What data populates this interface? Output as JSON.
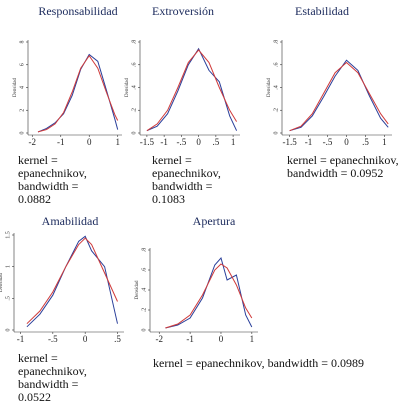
{
  "chart_data": [
    {
      "type": "line",
      "title": "Responsabilidad",
      "y_label": "Densidad",
      "note": "kernel = epanechnikov, bandwidth = 0.0882",
      "x": [
        -1.8,
        -1.5,
        -1.2,
        -0.9,
        -0.6,
        -0.3,
        0,
        0.3,
        0.6,
        0.9,
        1.0
      ],
      "series": [
        {
          "color": "#2a3f9a",
          "values": [
            0.1,
            0.4,
            0.9,
            1.7,
            3.3,
            5.6,
            6.9,
            6.3,
            3.8,
            1.2,
            0.3
          ]
        },
        {
          "color": "#d03a3a",
          "values": [
            0.1,
            0.3,
            0.8,
            1.8,
            3.6,
            5.7,
            6.8,
            5.7,
            3.6,
            1.6,
            1.1
          ]
        }
      ],
      "xlim": [
        -2.15,
        1.15
      ],
      "ylim": [
        0,
        8
      ],
      "xticks": [
        -2,
        -1,
        0,
        1
      ],
      "yticks": [
        0,
        2,
        4,
        6,
        8
      ]
    },
    {
      "type": "line",
      "title": "Extroversión",
      "y_label": "Densidad",
      "note": "kernel = epanechnikov, bandwidth = 0.1083",
      "x": [
        -1.5,
        -1.2,
        -0.9,
        -0.6,
        -0.3,
        0,
        0.3,
        0.6,
        0.9,
        1.1
      ],
      "series": [
        {
          "color": "#2a3f9a",
          "values": [
            0.02,
            0.06,
            0.17,
            0.37,
            0.6,
            0.74,
            0.55,
            0.45,
            0.15,
            0.02
          ]
        },
        {
          "color": "#d03a3a",
          "values": [
            0.02,
            0.08,
            0.2,
            0.4,
            0.62,
            0.73,
            0.62,
            0.4,
            0.2,
            0.1
          ]
        }
      ],
      "xlim": [
        -1.7,
        1.2
      ],
      "ylim": [
        0,
        0.8
      ],
      "xticks": [
        -1.5,
        -1,
        {
          "value": -0.5,
          "label": "-.5"
        },
        0,
        {
          "value": 0.5,
          "label": ".5"
        },
        1
      ],
      "yticks": [
        0,
        {
          "value": 0.2,
          "label": ".2"
        },
        {
          "value": 0.4,
          "label": ".4"
        },
        {
          "value": 0.6,
          "label": ".6"
        },
        {
          "value": 0.8,
          "label": ".8"
        }
      ]
    },
    {
      "type": "line",
      "title": "Estabilidad",
      "y_label": "Densidad",
      "note": "kernel = epanechnikov, bandwidth = 0.0952",
      "x": [
        -1.5,
        -1.2,
        -0.9,
        -0.6,
        -0.3,
        0,
        0.3,
        0.6,
        0.9,
        1.1
      ],
      "series": [
        {
          "color": "#2a3f9a",
          "values": [
            0.02,
            0.05,
            0.15,
            0.32,
            0.5,
            0.64,
            0.55,
            0.33,
            0.13,
            0.05
          ]
        },
        {
          "color": "#d03a3a",
          "values": [
            0.02,
            0.06,
            0.17,
            0.35,
            0.53,
            0.62,
            0.53,
            0.35,
            0.17,
            0.08
          ]
        }
      ],
      "xlim": [
        -1.7,
        1.2
      ],
      "ylim": [
        0,
        0.8
      ],
      "xticks": [
        -1.5,
        -1,
        {
          "value": -0.5,
          "label": "-.5"
        },
        0,
        {
          "value": 0.5,
          "label": ".5"
        },
        1
      ],
      "yticks": [
        0,
        {
          "value": 0.2,
          "label": ".2"
        },
        {
          "value": 0.4,
          "label": ".4"
        },
        {
          "value": 0.6,
          "label": ".6"
        },
        {
          "value": 0.8,
          "label": ".8"
        }
      ]
    },
    {
      "type": "line",
      "title": "Amabilidad",
      "y_label": "Densidad",
      "note": "kernel = epanechnikov, bandwidth = 0.0522",
      "x": [
        -0.9,
        -0.7,
        -0.5,
        -0.3,
        -0.1,
        0,
        0.1,
        0.3,
        0.5
      ],
      "series": [
        {
          "color": "#2a3f9a",
          "values": [
            0.05,
            0.25,
            0.55,
            1.0,
            1.4,
            1.48,
            1.25,
            1.0,
            0.1
          ]
        },
        {
          "color": "#d03a3a",
          "values": [
            0.1,
            0.3,
            0.6,
            1.0,
            1.35,
            1.45,
            1.35,
            0.9,
            0.45
          ]
        }
      ],
      "xlim": [
        -1.1,
        0.6
      ],
      "ylim": [
        0,
        1.5
      ],
      "xticks": [
        -1,
        {
          "value": -0.5,
          "label": "-.5"
        },
        0,
        {
          "value": 0.5,
          "label": ".5"
        }
      ],
      "yticks": [
        0,
        {
          "value": 0.5,
          "label": ".5"
        },
        1,
        1.5
      ]
    },
    {
      "type": "line",
      "title": "Apertura",
      "y_label": "Densidad",
      "note": "kernel = epanechnikov, bandwidth = 0.0989",
      "x": [
        -1.8,
        -1.4,
        -1,
        -0.6,
        -0.2,
        0,
        0.2,
        0.5,
        0.8,
        1.0
      ],
      "series": [
        {
          "color": "#2a3f9a",
          "values": [
            0.02,
            0.05,
            0.12,
            0.32,
            0.65,
            0.72,
            0.5,
            0.55,
            0.15,
            0.03
          ]
        },
        {
          "color": "#d03a3a",
          "values": [
            0.02,
            0.06,
            0.15,
            0.35,
            0.6,
            0.66,
            0.62,
            0.45,
            0.22,
            0.12
          ]
        }
      ],
      "xlim": [
        -2.3,
        1.2
      ],
      "ylim": [
        0,
        0.8
      ],
      "xticks": [
        -2,
        -1,
        0,
        1
      ],
      "yticks": [
        0,
        {
          "value": 0.2,
          "label": ".2"
        },
        {
          "value": 0.4,
          "label": ".4"
        },
        {
          "value": 0.6,
          "label": ".6"
        },
        {
          "value": 0.8,
          "label": ".8"
        }
      ]
    }
  ]
}
